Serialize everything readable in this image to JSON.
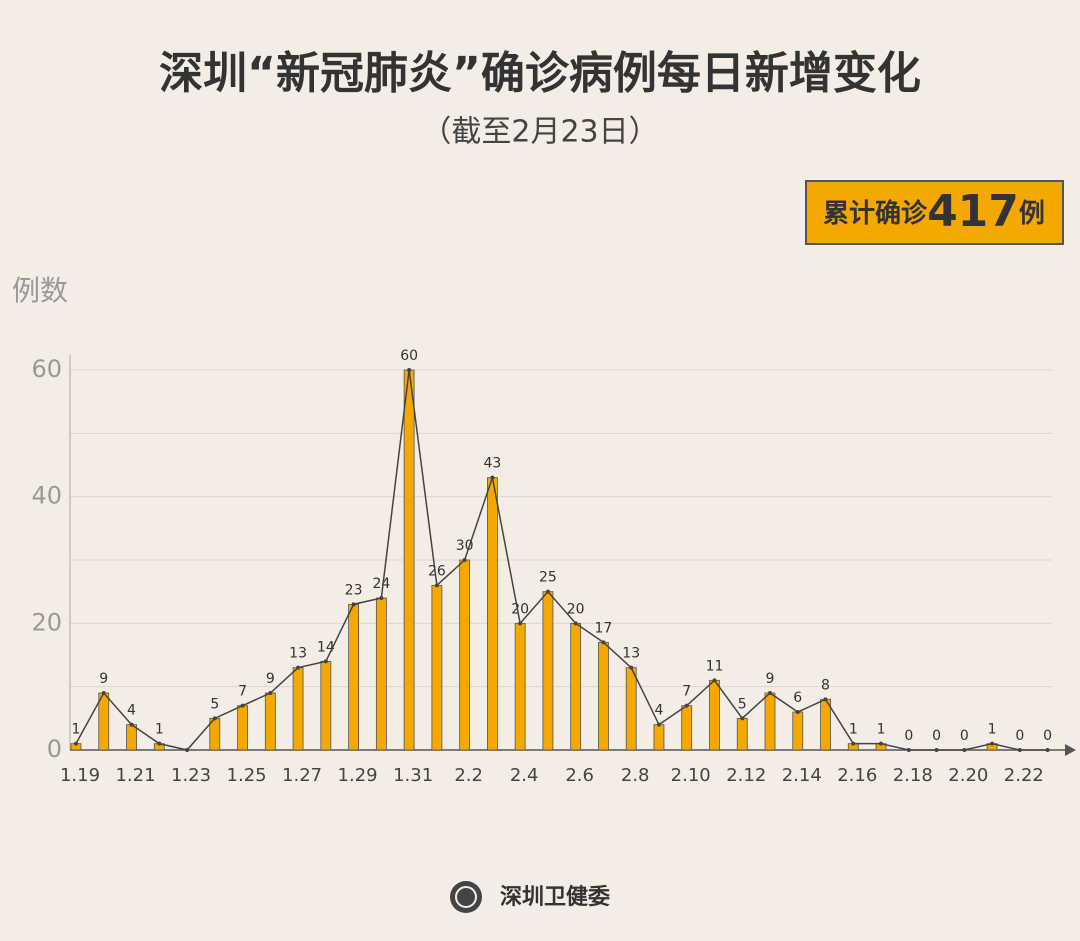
{
  "chart_data": {
    "type": "bar-line",
    "title": "深圳“新冠肺炎”确诊病例每日新增变化",
    "subtitle": "（截至2月23日）",
    "total_prefix": "累计确诊",
    "total": 417,
    "total_suffix": "例",
    "y_label": "例数",
    "source": "深圳卫健委",
    "categories": [
      "1.19",
      null,
      "1.21",
      null,
      "1.23",
      null,
      "1.25",
      null,
      "1.27",
      null,
      "1.29",
      null,
      "1.31",
      null,
      "2.2",
      null,
      "2.4",
      null,
      "2.6",
      null,
      "2.8",
      null,
      "2.10",
      null,
      "2.12",
      null,
      "2.14",
      null,
      "2.16",
      null,
      "2.18",
      null,
      "2.20",
      null,
      "2.22",
      null
    ],
    "values": [
      1,
      9,
      4,
      1,
      0,
      5,
      7,
      9,
      13,
      14,
      23,
      24,
      60,
      26,
      30,
      43,
      20,
      25,
      20,
      17,
      13,
      4,
      7,
      11,
      5,
      9,
      6,
      8,
      1,
      1,
      0,
      0,
      0,
      1,
      0,
      0
    ],
    "value_labels": [
      "1",
      "9",
      "4",
      "1",
      null,
      "5",
      "7",
      "9",
      "13",
      "14",
      "23",
      "24",
      "60",
      "26",
      "30",
      "43",
      "20",
      "25",
      "20",
      "17",
      "13",
      "4",
      "7",
      "11",
      "5",
      "9",
      "6",
      "8",
      "1",
      "1",
      "0",
      "0",
      "0",
      "1",
      "0",
      "0"
    ],
    "color": "#f5a800",
    "line_color": "#444444",
    "ylim": [
      0,
      60
    ],
    "yticks": [
      0,
      20,
      40,
      60
    ],
    "minor_yticks": [
      10,
      30,
      50
    ],
    "grid": true
  }
}
